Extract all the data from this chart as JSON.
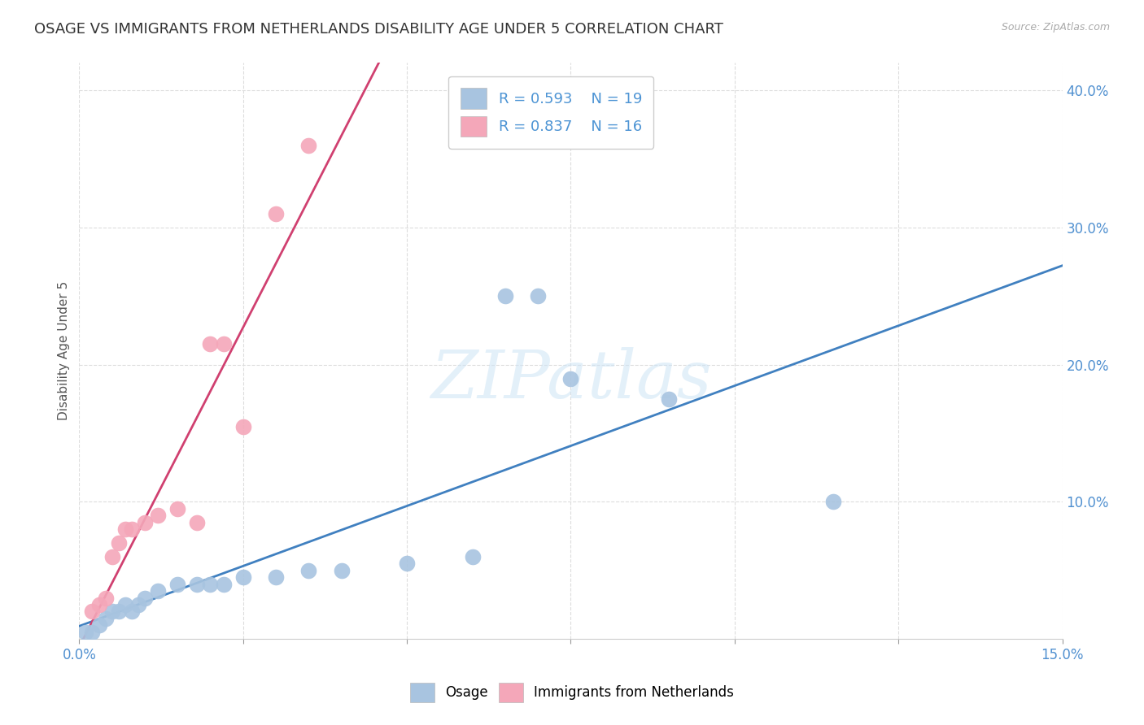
{
  "title": "OSAGE VS IMMIGRANTS FROM NETHERLANDS DISABILITY AGE UNDER 5 CORRELATION CHART",
  "source": "Source: ZipAtlas.com",
  "ylabel": "Disability Age Under 5",
  "xlim": [
    0.0,
    0.15
  ],
  "ylim": [
    0.0,
    0.42
  ],
  "xticks": [
    0.0,
    0.025,
    0.05,
    0.075,
    0.1,
    0.125,
    0.15
  ],
  "xtick_labels": [
    "0.0%",
    "",
    "",
    "",
    "",
    "",
    "15.0%"
  ],
  "yticks": [
    0.1,
    0.2,
    0.3,
    0.4
  ],
  "ytick_labels": [
    "10.0%",
    "20.0%",
    "30.0%",
    "40.0%"
  ],
  "osage_color": "#a8c4e0",
  "netherlands_color": "#f4a7b9",
  "osage_line_color": "#4080c0",
  "netherlands_line_color": "#d04070",
  "title_fontsize": 13,
  "axis_label_fontsize": 11,
  "tick_fontsize": 12,
  "watermark_text": "ZIPatlas",
  "osage_x": [
    0.001,
    0.002,
    0.003,
    0.004,
    0.005,
    0.006,
    0.007,
    0.008,
    0.009,
    0.01,
    0.012,
    0.015,
    0.018,
    0.02,
    0.022,
    0.025,
    0.03,
    0.035,
    0.04,
    0.05,
    0.06,
    0.065,
    0.07,
    0.075,
    0.09,
    0.115
  ],
  "osage_y": [
    0.005,
    0.005,
    0.01,
    0.015,
    0.02,
    0.02,
    0.025,
    0.02,
    0.025,
    0.03,
    0.035,
    0.04,
    0.04,
    0.04,
    0.04,
    0.045,
    0.045,
    0.05,
    0.05,
    0.055,
    0.06,
    0.25,
    0.25,
    0.19,
    0.175,
    0.1
  ],
  "netherlands_x": [
    0.002,
    0.003,
    0.004,
    0.005,
    0.006,
    0.007,
    0.008,
    0.01,
    0.012,
    0.015,
    0.018,
    0.02,
    0.022,
    0.025,
    0.03,
    0.035
  ],
  "netherlands_y": [
    0.02,
    0.025,
    0.03,
    0.06,
    0.07,
    0.08,
    0.08,
    0.085,
    0.09,
    0.095,
    0.085,
    0.215,
    0.215,
    0.155,
    0.31,
    0.36
  ],
  "background_color": "#ffffff",
  "grid_color": "#dddddd"
}
